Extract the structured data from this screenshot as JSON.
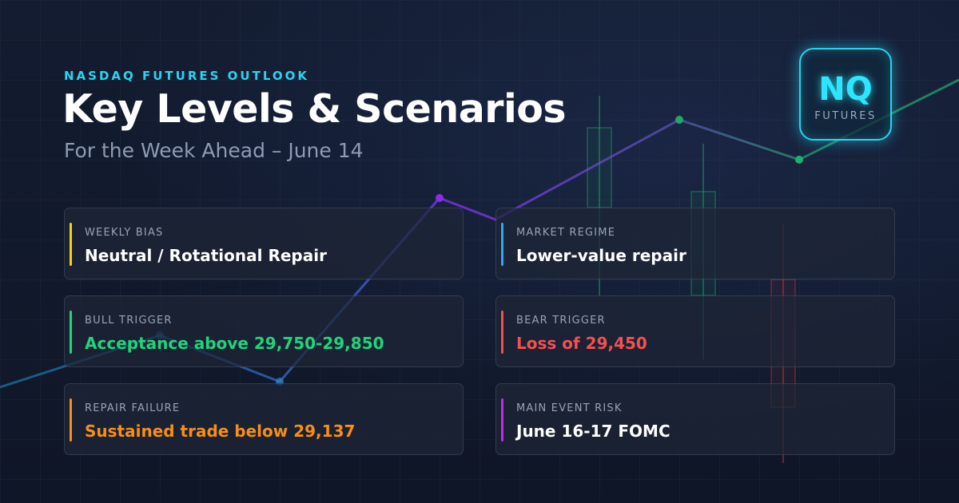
{
  "header": {
    "kicker": "NASDAQ FUTURES OUTLOOK",
    "title": "Key Levels & Scenarios",
    "subtitle": "For the Week Ahead – June 14"
  },
  "badge": {
    "main": "NQ",
    "sub": "FUTURES"
  },
  "cards": [
    {
      "label": "WEEKLY BIAS",
      "value": "Neutral / Rotational Repair",
      "accent": "#f5d30f",
      "value_color": "#ffffff"
    },
    {
      "label": "MARKET REGIME",
      "value": "Lower-value repair",
      "accent": "#2fa6f0",
      "value_color": "#ffffff"
    },
    {
      "label": "BULL TRIGGER",
      "value": "Acceptance above 29,750-29,850",
      "accent": "#1fd57a",
      "value_color": "#1fd57a"
    },
    {
      "label": "BEAR TRIGGER",
      "value": "Loss of 29,450",
      "accent": "#f5504f",
      "value_color": "#f5504f"
    },
    {
      "label": "REPAIR FAILURE",
      "value": "Sustained trade below 29,137",
      "accent": "#f78f16",
      "value_color": "#f78f16"
    },
    {
      "label": "MAIN EVENT RISK",
      "value": "June 16-17 FOMC",
      "accent": "#c32ae8",
      "value_color": "#ffffff"
    }
  ],
  "colors": {
    "background": "#111a2e",
    "accent_cyan": "#22d6f2"
  }
}
